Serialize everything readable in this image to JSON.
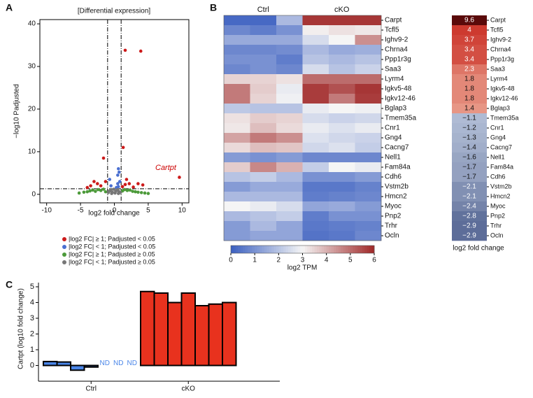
{
  "chart_data": [
    {
      "type": "scatter",
      "panel": "A",
      "title": "[Differential expression]",
      "x_label": "log2 fold change",
      "y_label": "−log10 Padjusted",
      "xlim": [
        -11,
        11
      ],
      "ylim": [
        -2,
        41
      ],
      "xticks": [
        -10,
        -5,
        0,
        5,
        10
      ],
      "yticks": [
        0,
        10,
        20,
        30,
        40
      ],
      "x_thresholds": [
        -1,
        1
      ],
      "y_threshold": 1.3,
      "annotation": "Cartpt",
      "series": [
        {
          "name": "|log2 FC| ≥ 1; Padjusted < 0.05",
          "color": "#cc1a1a",
          "x": [
            1.6,
            3.9,
            -1.6,
            9.6,
            1.3,
            1.6,
            2.2,
            3.5,
            4.2,
            -2.5,
            -3,
            -2,
            -1.3,
            -3.5,
            2.8,
            1.2,
            -4,
            1.8
          ],
          "y": [
            33.8,
            33.6,
            8.5,
            4.0,
            11,
            2.3,
            2.5,
            2.5,
            2.2,
            2.5,
            3,
            2,
            3,
            2,
            1.7,
            1.8,
            1.6,
            3.5
          ]
        },
        {
          "name": "|log2 FC| < 1; Padjusted < 0.05",
          "color": "#4a6fd0",
          "x": [
            0.6,
            0.7,
            0.5,
            0.8,
            -0.7,
            0.5,
            -0.5,
            0.6,
            0.3
          ],
          "y": [
            6,
            5.2,
            4.5,
            3,
            3.5,
            2.5,
            2,
            1.8,
            1.6
          ]
        },
        {
          "name": "|log2 FC| ≥ 1; Padjusted ≥ 0.05",
          "color": "#4c9a3a",
          "x": [
            -5.2,
            -4.5,
            -4,
            -3.6,
            -3.2,
            -2.8,
            -2.4,
            -2,
            -1.6,
            -1.3,
            1.2,
            1.5,
            1.9,
            2.3,
            2.7,
            3.1,
            3.5,
            4,
            4.5,
            5
          ],
          "y": [
            0.3,
            0.5,
            0.6,
            0.8,
            1,
            0.7,
            1.1,
            0.9,
            1.2,
            0.6,
            0.8,
            1.1,
            0.9,
            1,
            0.7,
            0.6,
            0.5,
            0.4,
            0.3,
            0.2
          ]
        },
        {
          "name": "|log2 FC| < 1; Padjusted ≥ 0.05",
          "color": "#777777",
          "x": [
            -0.9,
            -0.7,
            -0.5,
            -0.3,
            -0.1,
            0.1,
            0.3,
            0.5,
            0.7,
            0.9,
            -0.4,
            0.2,
            0.6
          ],
          "y": [
            0.4,
            0.8,
            1.1,
            0.5,
            1.2,
            0.3,
            0.9,
            1.1,
            0.6,
            0.4,
            0.2,
            0.7,
            0.2
          ]
        }
      ]
    },
    {
      "type": "heatmap",
      "panel": "B",
      "column_groups": [
        "Ctrl",
        "cKO"
      ],
      "rows": [
        "Carpt",
        "Tcfl5",
        "Ighv9-2",
        "Chrna4",
        "Ppp1r3g",
        "Saa3",
        "Lyrm4",
        "Igkv5-48",
        "Igkv12-46",
        "Bglap3",
        "Tmem35a",
        "Cnr1",
        "Gng4",
        "Cacng7",
        "Nell1",
        "Fam84a",
        "Cdh6",
        "Vstm2b",
        "Hmcn2",
        "Myoc",
        "Pnp2",
        "Trhr",
        "Ocln"
      ],
      "values": [
        [
          0.2,
          0.2,
          1.8,
          5.8,
          5.8,
          5.8
        ],
        [
          0.8,
          0.6,
          1.0,
          3.1,
          3.3,
          3.2
        ],
        [
          1.5,
          1.5,
          1.5,
          2.5,
          3.0,
          4.5
        ],
        [
          0.8,
          0.8,
          0.9,
          1.8,
          1.5,
          1.6
        ],
        [
          1.0,
          1.0,
          0.6,
          2.0,
          1.8,
          2.0
        ],
        [
          0.8,
          1.0,
          0.8,
          2.5,
          2.0,
          2.3
        ],
        [
          3.5,
          3.5,
          3.3,
          5.0,
          5.0,
          5.0
        ],
        [
          4.8,
          3.6,
          2.8,
          5.7,
          5.4,
          5.8
        ],
        [
          4.8,
          3.5,
          2.9,
          5.7,
          4.8,
          5.7
        ],
        [
          2.1,
          2.0,
          2.0,
          2.8,
          3.0,
          2.9
        ],
        [
          3.3,
          3.6,
          3.5,
          2.5,
          2.3,
          2.4
        ],
        [
          3.2,
          3.8,
          3.4,
          2.8,
          2.6,
          2.8
        ],
        [
          4.2,
          4.8,
          4.5,
          2.6,
          2.4,
          2.3
        ],
        [
          3.4,
          3.8,
          3.7,
          2.4,
          2.6,
          2.2
        ],
        [
          1.2,
          1.0,
          1.2,
          0.8,
          0.8,
          0.8
        ],
        [
          3.6,
          4.6,
          4.0,
          2.2,
          3.0,
          2.8
        ],
        [
          2.0,
          2.2,
          1.8,
          1.0,
          1.0,
          1.2
        ],
        [
          1.2,
          1.5,
          1.5,
          0.5,
          0.5,
          0.7
        ],
        [
          1.8,
          1.8,
          1.8,
          0.6,
          0.7,
          0.8
        ],
        [
          3.0,
          2.8,
          2.5,
          1.4,
          1.5,
          1.2
        ],
        [
          1.8,
          2.0,
          2.2,
          0.6,
          1.0,
          1.0
        ],
        [
          1.2,
          1.8,
          1.4,
          0.5,
          0.6,
          0.7
        ],
        [
          1.2,
          1.4,
          1.4,
          0.4,
          0.5,
          0.8
        ]
      ],
      "colorbar_label": "log2 TPM",
      "clim": [
        0,
        6
      ],
      "cticks": [
        0,
        1,
        2,
        3,
        4,
        5,
        6
      ]
    },
    {
      "type": "fold-change",
      "label": "log2 fold change",
      "rows": [
        "Carpt",
        "Tcfl5",
        "Ighv9-2",
        "Chrna4",
        "Ppp1r3g",
        "Saa3",
        "Lyrm4",
        "Igkv5-48",
        "Igkv12-46",
        "Bglap3",
        "Tmem35a",
        "Cnr1",
        "Gng4",
        "Cacng7",
        "Nell1",
        "Fam84a",
        "Cdh6",
        "Vstm2b",
        "Hmcn2",
        "Myoc",
        "Pnp2",
        "Trhr",
        "Ocln"
      ],
      "values": [
        9.6,
        4,
        3.7,
        3.4,
        3.4,
        2.3,
        1.8,
        1.8,
        1.8,
        1.4,
        -1.1,
        -1.2,
        -1.3,
        -1.4,
        -1.6,
        -1.7,
        -1.7,
        -2.1,
        -2.1,
        -2.4,
        -2.8,
        -2.9,
        -2.9
      ],
      "value_labels": [
        "9.6",
        "4",
        "3.7",
        "3.4",
        "3.4",
        "2.3",
        "1.8",
        "1.8",
        "1.8",
        "1.4",
        "−1.1",
        "−1.2",
        "−1.3",
        "−1.4",
        "−1.6",
        "−1.7",
        "−1.7",
        "−2.1",
        "−2.1",
        "−2.4",
        "−2.8",
        "−2.9",
        "−2.9"
      ]
    },
    {
      "type": "bar",
      "panel": "C",
      "y_label": "Cartpt (log10 fold change)",
      "ylim": [
        -1,
        5
      ],
      "yticks": [
        0,
        1,
        2,
        3,
        4,
        5
      ],
      "groups": [
        {
          "name": "Ctrl",
          "color": "#4a86e8",
          "values": [
            0.25,
            0.22,
            -0.3,
            -0.1,
            null,
            null,
            null
          ],
          "value_labels": [
            null,
            null,
            null,
            null,
            "ND",
            "ND",
            "ND"
          ]
        },
        {
          "name": "cKO",
          "color": "#e8321e",
          "values": [
            4.7,
            4.6,
            4.0,
            4.6,
            3.8,
            3.9,
            4.0
          ]
        }
      ]
    }
  ]
}
